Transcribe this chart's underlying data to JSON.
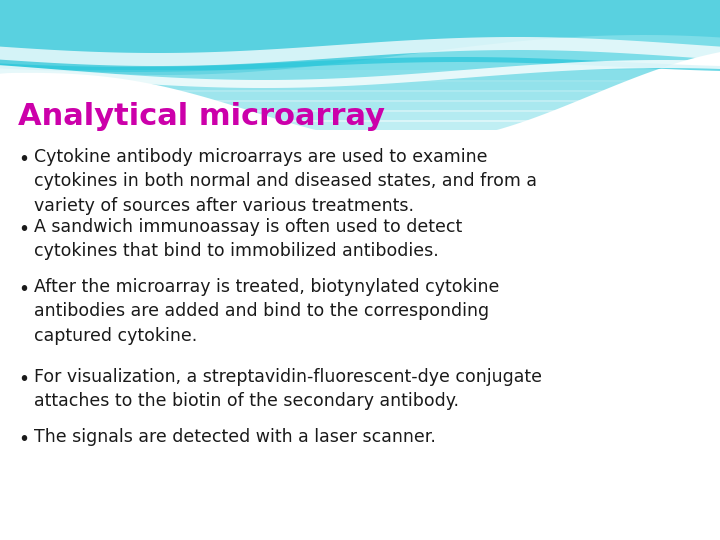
{
  "title": "Analytical microarray",
  "title_color": "#cc00aa",
  "title_fontsize": 22,
  "title_bold": true,
  "bg_color": "#ffffff",
  "bullet_points": [
    "Cytokine antibody microarrays are used to examine\ncytokines in both normal and diseased states, and from a\nvariety of sources after various treatments.",
    "A sandwich immunoassay is often used to detect\ncytokines that bind to immobilized antibodies.",
    "After the microarray is treated, biotynylated cytokine\nantibodies are added and bind to the corresponding\ncaptured cytokine.",
    "For visualization, a streptavidin-fluorescent-dye conjugate\nattaches to the biotin of the secondary antibody.",
    "The signals are detected with a laser scanner."
  ],
  "bullet_color": "#1a1a1a",
  "bullet_fontsize": 12.5
}
